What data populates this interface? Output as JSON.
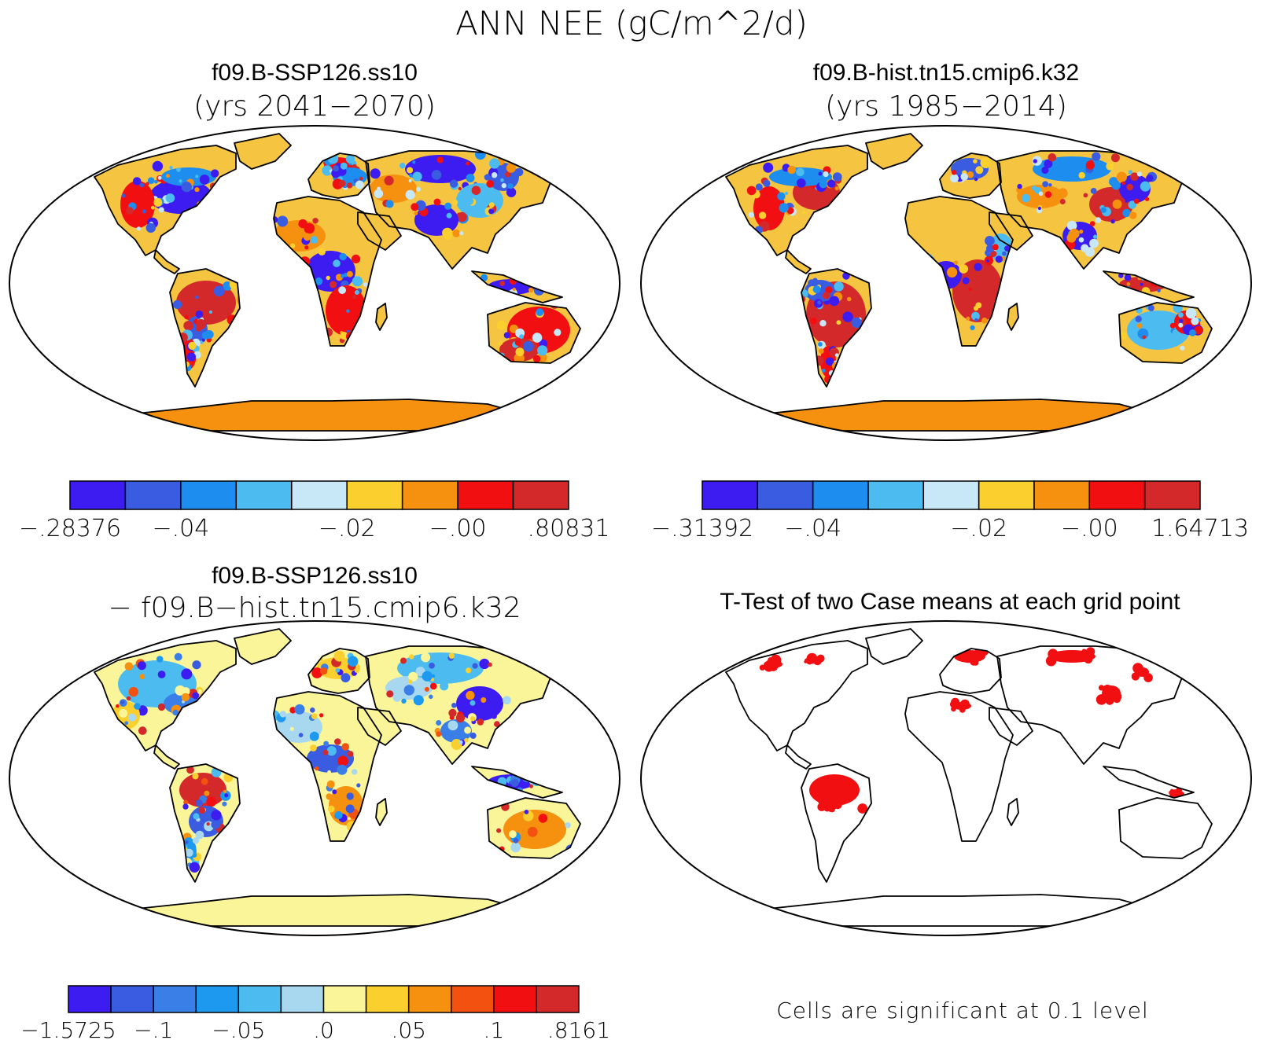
{
  "title": "ANN NEE (gC/m^2/d)",
  "panels": [
    {
      "title_line1": "f09.B-SSP126.ss10",
      "title_line2": "(yrs 2041−2070)",
      "style": "field",
      "land_base": "#f5c542",
      "colorbar": {
        "colors": [
          "#3c1cf0",
          "#3a5ce0",
          "#1d8df0",
          "#4cbcf0",
          "#c8e8f8",
          "#fbcf2e",
          "#f6900f",
          "#f20f12",
          "#d4292b"
        ],
        "labels": [
          "−.28376",
          "−.04",
          "−.02",
          "−.00",
          ".80831"
        ]
      }
    },
    {
      "title_line1": "f09.B-hist.tn15.cmip6.k32",
      "title_line2": "(yrs 1985−2014)",
      "style": "field",
      "land_base": "#f5c542",
      "colorbar": {
        "colors": [
          "#3c1cf0",
          "#3a5ce0",
          "#1d8df0",
          "#4cbcf0",
          "#c8e8f8",
          "#fbcf2e",
          "#f6900f",
          "#f20f12",
          "#d4292b"
        ],
        "labels": [
          "−.31392",
          "−.04",
          "−.02",
          "−.00",
          "1.64713"
        ]
      }
    },
    {
      "title_line1": "f09.B-SSP126.ss10",
      "title_line2": "− f09.B−hist.tn15.cmip6.k32",
      "style": "diff",
      "land_base": "#fbf59a",
      "colorbar": {
        "colors": [
          "#3c1cf0",
          "#3a5ce0",
          "#3a7ee8",
          "#1d9af0",
          "#4cbcf0",
          "#a8d8f0",
          "#fbf59a",
          "#fbcf2e",
          "#f6900f",
          "#f2510f",
          "#f20f12",
          "#d4292b"
        ],
        "labels": [
          "−1.5725",
          "−.1",
          "−.05",
          ".0",
          ".05",
          ".1",
          ".8161"
        ]
      }
    },
    {
      "title_line1": "T-Test of two Case means at each grid point",
      "title_line2": "",
      "style": "ttest",
      "land_base": "#ffffff",
      "footnote": "Cells are significant at 0.1 level"
    }
  ]
}
